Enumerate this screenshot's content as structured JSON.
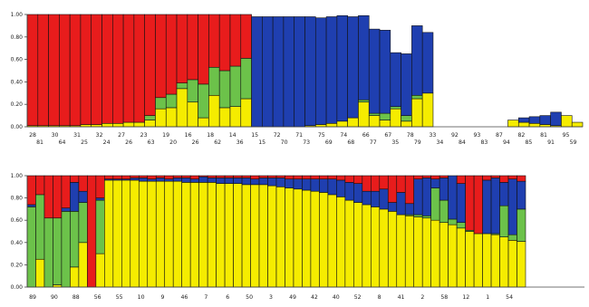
{
  "colors": {
    "cluster_1": "#e81c1c",
    "cluster_2": "#6cc24a",
    "cluster_3": "#1f3fb0",
    "cluster_4": "#f5ec00",
    "bar_stroke": "#111111",
    "axis": "#444444"
  },
  "chart_data": [
    {
      "type": "bar",
      "stacked": true,
      "ylim": [
        0,
        1
      ],
      "yticks": [
        "0.00",
        "0.20",
        "0.40",
        "0.60",
        "0.80",
        "1.00"
      ],
      "grid": false,
      "label_row_1": [
        "28",
        "30",
        "31",
        "32",
        "27",
        "23",
        "19",
        "16",
        "18",
        "14",
        "15",
        "72",
        "71",
        "75",
        "74",
        "66",
        "67",
        "78",
        "33",
        "92",
        "93",
        "87",
        "82",
        "81",
        "95"
      ],
      "label_row_2": [
        "81",
        "64",
        "25",
        "24",
        "26",
        "63",
        "20",
        "26",
        "62",
        "36",
        "15",
        "70",
        "73",
        "69",
        "68",
        "77",
        "35",
        "79",
        "34",
        "84",
        "83",
        "94",
        "85",
        "91",
        "59"
      ],
      "series": [
        {
          "values": [
            0.01,
            0.01,
            0.01,
            0.01,
            0.01,
            0.02,
            0.02,
            0.03,
            0.03,
            0.04,
            0.04,
            0.06,
            0.16,
            0.17,
            0.34,
            0.22,
            0.08,
            0.28,
            0.17,
            0.18,
            0.25,
            0.0,
            0.0,
            0.0,
            0.0,
            0.0,
            0.01,
            0.02,
            0.03,
            0.05,
            0.08,
            0.22,
            0.1,
            0.06,
            0.16,
            0.05,
            0.25,
            0.3,
            0.0,
            0.0,
            0.0,
            0.0,
            0.0,
            0.0,
            0.0,
            0.06,
            0.04,
            0.03,
            0.02,
            0.01,
            0.1,
            0.04
          ]
        },
        {
          "values": [
            0.0,
            0.0,
            0.0,
            0.0,
            0.0,
            0.0,
            0.0,
            0.0,
            0.0,
            0.0,
            0.0,
            0.04,
            0.1,
            0.12,
            0.05,
            0.2,
            0.3,
            0.25,
            0.33,
            0.36,
            0.36,
            0.0,
            0.0,
            0.0,
            0.0,
            0.0,
            0.0,
            0.0,
            0.0,
            0.0,
            0.0,
            0.02,
            0.02,
            0.06,
            0.02,
            0.05,
            0.03,
            0.0,
            0.0,
            0.0,
            0.0,
            0.0,
            0.0,
            0.0,
            0.0,
            0.0,
            0.0,
            0.0,
            0.0,
            0.0,
            0.0,
            0.0
          ]
        },
        {
          "values": [
            0.0,
            0.0,
            0.0,
            0.0,
            0.0,
            0.0,
            0.0,
            0.0,
            0.0,
            0.0,
            0.0,
            0.0,
            0.0,
            0.0,
            0.0,
            0.0,
            0.0,
            0.0,
            0.0,
            0.0,
            0.0,
            0.98,
            0.98,
            0.98,
            0.98,
            0.98,
            0.97,
            0.95,
            0.95,
            0.94,
            0.9,
            0.75,
            0.75,
            0.74,
            0.48,
            0.55,
            0.62,
            0.54,
            0.0,
            0.0,
            0.0,
            0.0,
            0.0,
            0.0,
            0.0,
            0.0,
            0.04,
            0.06,
            0.08,
            0.12,
            0.0,
            0.0
          ]
        },
        {
          "values": [
            0.99,
            0.99,
            0.99,
            0.99,
            0.99,
            0.98,
            0.98,
            0.97,
            0.97,
            0.96,
            0.96,
            0.9,
            0.74,
            0.71,
            0.61,
            0.58,
            0.62,
            0.47,
            0.5,
            0.46,
            0.39,
            0.0,
            0.0,
            0.0,
            0.0,
            0.0,
            0.0,
            0.0,
            0.0,
            0.0,
            0.0,
            0.0,
            0.0,
            0.0,
            0.0,
            0.0,
            0.0,
            0.0,
            0.0,
            0.0,
            0.0,
            0.0,
            0.0,
            0.0,
            0.0,
            0.0,
            0.0,
            0.0,
            0.0,
            0.0,
            0.0,
            0.0
          ]
        }
      ]
    },
    {
      "type": "bar",
      "stacked": true,
      "ylim": [
        0,
        1
      ],
      "yticks": [
        "0.00",
        "0.20",
        "0.40",
        "0.60",
        "0.80",
        "1.00"
      ],
      "grid": false,
      "label_row_1": [
        "89",
        "90",
        "88",
        "56",
        "55",
        "10",
        "9",
        "46",
        "7",
        "6",
        "50",
        "3",
        "49",
        "42",
        "40",
        "52",
        "8",
        "41",
        "2",
        "58",
        "12",
        "1",
        "54"
      ],
      "series": [
        {
          "values": [
            0.0,
            0.25,
            0.0,
            0.02,
            0.0,
            0.18,
            0.4,
            0.0,
            0.3,
            0.96,
            0.96,
            0.96,
            0.96,
            0.95,
            0.95,
            0.95,
            0.95,
            0.95,
            0.94,
            0.94,
            0.94,
            0.94,
            0.93,
            0.93,
            0.93,
            0.92,
            0.92,
            0.92,
            0.91,
            0.9,
            0.89,
            0.88,
            0.87,
            0.86,
            0.85,
            0.83,
            0.81,
            0.78,
            0.76,
            0.74,
            0.72,
            0.7,
            0.68,
            0.65,
            0.64,
            0.63,
            0.62,
            0.6,
            0.58,
            0.56,
            0.53,
            0.5,
            0.48,
            0.48,
            0.47,
            0.45,
            0.42,
            0.41
          ]
        },
        {
          "values": [
            0.72,
            0.58,
            0.62,
            0.6,
            0.68,
            0.5,
            0.36,
            0.0,
            0.48,
            0.0,
            0.0,
            0.0,
            0.0,
            0.0,
            0.0,
            0.0,
            0.0,
            0.0,
            0.0,
            0.0,
            0.0,
            0.0,
            0.0,
            0.0,
            0.0,
            0.0,
            0.0,
            0.0,
            0.0,
            0.0,
            0.0,
            0.0,
            0.0,
            0.0,
            0.0,
            0.0,
            0.0,
            0.0,
            0.0,
            0.0,
            0.0,
            0.0,
            0.0,
            0.0,
            0.01,
            0.02,
            0.02,
            0.29,
            0.2,
            0.05,
            0.05,
            0.01,
            0.0,
            0.0,
            0.01,
            0.28,
            0.05,
            0.29
          ]
        },
        {
          "values": [
            0.02,
            0.0,
            0.0,
            0.0,
            0.03,
            0.26,
            0.1,
            0.0,
            0.02,
            0.01,
            0.01,
            0.01,
            0.02,
            0.03,
            0.02,
            0.03,
            0.02,
            0.03,
            0.04,
            0.03,
            0.05,
            0.04,
            0.05,
            0.05,
            0.05,
            0.06,
            0.05,
            0.06,
            0.07,
            0.08,
            0.08,
            0.09,
            0.1,
            0.11,
            0.12,
            0.14,
            0.15,
            0.16,
            0.17,
            0.12,
            0.14,
            0.18,
            0.08,
            0.2,
            0.1,
            0.32,
            0.34,
            0.08,
            0.2,
            0.39,
            0.35,
            0.0,
            0.0,
            0.48,
            0.5,
            0.21,
            0.5,
            0.25
          ]
        },
        {
          "values": [
            0.26,
            0.17,
            0.38,
            0.38,
            0.29,
            0.06,
            0.14,
            1.0,
            0.2,
            0.03,
            0.03,
            0.03,
            0.02,
            0.02,
            0.03,
            0.02,
            0.03,
            0.02,
            0.02,
            0.03,
            0.01,
            0.02,
            0.02,
            0.02,
            0.02,
            0.02,
            0.03,
            0.02,
            0.02,
            0.02,
            0.03,
            0.03,
            0.03,
            0.03,
            0.03,
            0.03,
            0.04,
            0.06,
            0.07,
            0.14,
            0.14,
            0.12,
            0.24,
            0.15,
            0.25,
            0.03,
            0.02,
            0.03,
            0.02,
            0.0,
            0.07,
            0.49,
            0.52,
            0.04,
            0.02,
            0.06,
            0.03,
            0.05
          ]
        }
      ]
    }
  ]
}
